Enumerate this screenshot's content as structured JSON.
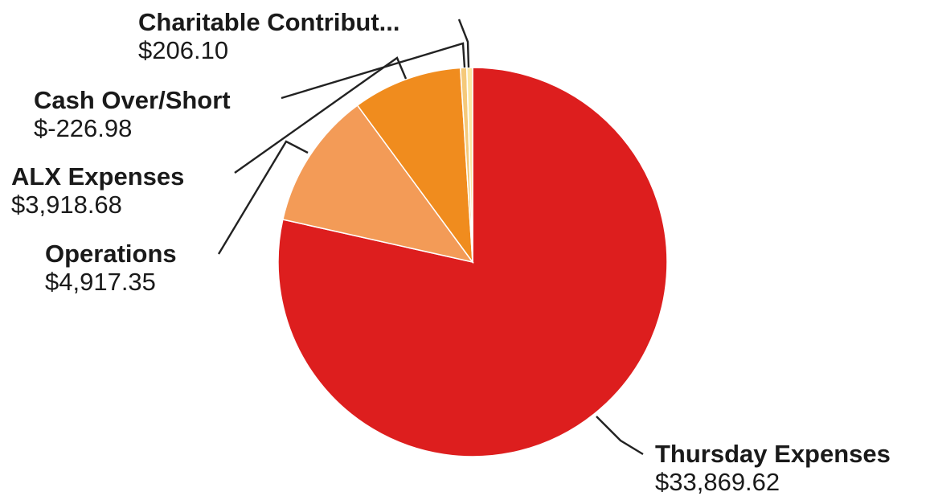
{
  "chart_data": {
    "type": "pie",
    "title": "",
    "slices": [
      {
        "label": "Thursday Expenses",
        "value_label": "$33,869.62",
        "value": 33869.62,
        "color": "#dd1e1e"
      },
      {
        "label": "Operations",
        "value_label": "$4,917.35",
        "value": 4917.35,
        "color": "#f39b57"
      },
      {
        "label": "ALX Expenses",
        "value_label": "$3,918.68",
        "value": 3918.68,
        "color": "#f08c1e"
      },
      {
        "label": "Cash Over/Short",
        "value_label": "$-226.98",
        "value": -226.98,
        "color": "#f5c97a"
      },
      {
        "label": "Charitable Contribut...",
        "value_label": "$206.10",
        "value": 206.1,
        "color": "#fbe6a3"
      }
    ],
    "legend": "none"
  }
}
